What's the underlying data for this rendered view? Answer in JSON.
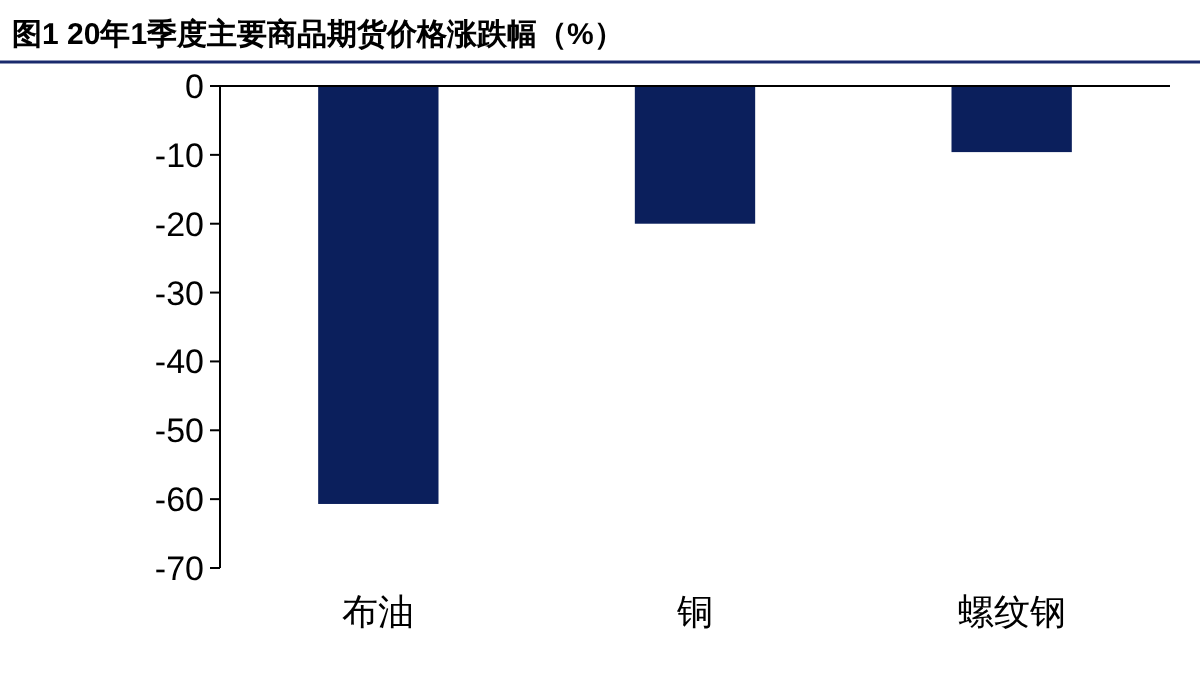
{
  "chart_data": {
    "type": "bar",
    "title": "图1  20年1季度主要商品期货价格涨跌幅（%）",
    "categories": [
      "布油",
      "铜",
      "螺纹钢"
    ],
    "values": [
      -60.7,
      -20.0,
      -9.6
    ],
    "color": "#0b1f5c",
    "ylim": [
      -70,
      0
    ],
    "yticks": [
      -70,
      -60,
      -50,
      -40,
      -30,
      -20,
      -10,
      0
    ],
    "grid": false
  }
}
